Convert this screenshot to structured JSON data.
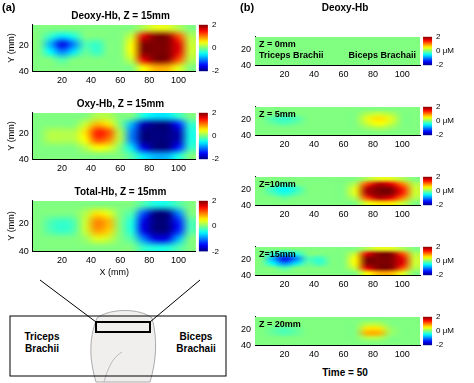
{
  "figure": {
    "panel_labels": [
      "(a)",
      "(b)"
    ],
    "title_b": "Deoxy-Hb",
    "footer_b": "Time = 50",
    "diagram_labels": [
      "Triceps Brachii",
      "Biceps Brachaii"
    ]
  },
  "chart_data": [
    {
      "type": "heatmap",
      "title": "Deoxy-Hb, Z = 15mm",
      "y_label": "Y (mm)",
      "x": [
        4,
        12,
        20,
        28,
        36,
        44,
        52,
        60,
        68,
        76,
        84,
        92,
        100,
        108
      ],
      "y": [
        7,
        13,
        19,
        25,
        31,
        37
      ],
      "cells": [
        [
          0,
          0,
          0,
          0,
          0,
          0,
          0,
          0,
          0,
          0.2,
          0.4,
          0.4,
          0.2,
          0
        ],
        [
          0,
          -0.3,
          -0.6,
          -0.4,
          0,
          0,
          0,
          0,
          0.3,
          1.6,
          2,
          2,
          1.2,
          0.2
        ],
        [
          0,
          -0.8,
          -1.6,
          -1,
          -0.2,
          -0.3,
          0,
          0,
          0.5,
          2,
          2,
          2,
          1.6,
          0.3
        ],
        [
          0,
          -0.5,
          -1,
          -0.6,
          -0.1,
          -0.3,
          0,
          0,
          0.5,
          2,
          2,
          2,
          1.6,
          0.3
        ],
        [
          0,
          0,
          -0.2,
          0,
          0,
          0,
          0,
          0,
          0.3,
          1.6,
          2,
          2,
          1.2,
          0.2
        ],
        [
          0,
          0,
          0,
          0,
          0,
          0,
          0,
          0,
          0,
          0.5,
          0.8,
          0.8,
          0.4,
          0
        ]
      ],
      "xlim": [
        0,
        112
      ],
      "ylim": [
        4,
        40
      ],
      "xticks": [
        20,
        40,
        60,
        80,
        100
      ],
      "yticks": [
        20,
        40
      ],
      "grid": false,
      "colorbar_range": [
        -2,
        2
      ],
      "colorbar_ticks": [
        -2,
        0,
        2
      ]
    },
    {
      "type": "heatmap",
      "title": "Oxy-Hb, Z = 15mm",
      "y_label": "Y (mm)",
      "x": [
        4,
        12,
        20,
        28,
        36,
        44,
        52,
        60,
        68,
        76,
        84,
        92,
        100,
        108
      ],
      "y": [
        7,
        13,
        19,
        25,
        31,
        37
      ],
      "cells": [
        [
          0,
          0,
          0,
          0,
          0,
          0.2,
          0.2,
          0,
          0,
          -0.4,
          -0.6,
          -0.6,
          -0.3,
          0
        ],
        [
          0,
          0,
          0,
          0,
          0.3,
          0.8,
          0.6,
          0,
          -0.8,
          -1.8,
          -2,
          -2,
          -1.4,
          -0.3
        ],
        [
          0,
          0.2,
          0.2,
          0.2,
          0.6,
          1.4,
          1.2,
          0.2,
          -1,
          -2,
          -2,
          -2,
          -1.8,
          -0.4
        ],
        [
          0,
          0.2,
          0.2,
          0.2,
          0.5,
          1.2,
          1,
          0.2,
          -1,
          -2,
          -2,
          -2,
          -1.8,
          -0.4
        ],
        [
          0,
          0,
          0,
          0,
          0.2,
          0.5,
          0.4,
          0,
          -0.6,
          -1.6,
          -2,
          -2,
          -1.4,
          -0.3
        ],
        [
          0,
          0,
          0,
          0,
          0,
          0,
          0,
          0,
          -0.2,
          -0.6,
          -0.8,
          -0.8,
          -0.4,
          0
        ]
      ],
      "xlim": [
        0,
        112
      ],
      "ylim": [
        4,
        40
      ],
      "xticks": [
        20,
        40,
        60,
        80,
        100
      ],
      "yticks": [
        20,
        40
      ],
      "grid": false,
      "colorbar_range": [
        -2,
        2
      ],
      "colorbar_ticks": [
        -2,
        0,
        2
      ]
    },
    {
      "type": "heatmap",
      "title": "Total-Hb, Z = 15mm",
      "x_label": "X (mm)",
      "y_label": "Y (mm)",
      "x": [
        4,
        12,
        20,
        28,
        36,
        44,
        52,
        60,
        68,
        76,
        84,
        92,
        100,
        108
      ],
      "y": [
        7,
        13,
        19,
        25,
        31,
        37
      ],
      "cells": [
        [
          0,
          0,
          0,
          0,
          0,
          0,
          0,
          0,
          0,
          -0.2,
          -0.4,
          -0.4,
          -0.2,
          0
        ],
        [
          0,
          0,
          0,
          0,
          0.2,
          0.6,
          0.4,
          0,
          -0.2,
          -1.2,
          -2,
          -2,
          -1,
          0
        ],
        [
          0,
          -0.2,
          -0.3,
          -0.2,
          0.3,
          1,
          0.8,
          0,
          -0.4,
          -1.6,
          -2,
          -2,
          -1.4,
          -0.2
        ],
        [
          0,
          -0.2,
          -0.3,
          -0.2,
          0.3,
          0.9,
          0.7,
          0,
          -0.4,
          -1.6,
          -2,
          -2,
          -1.4,
          -0.2
        ],
        [
          0,
          0,
          0,
          0,
          0.1,
          0.4,
          0.3,
          0,
          -0.2,
          -1,
          -1.6,
          -1.6,
          -0.8,
          0
        ],
        [
          0,
          0,
          0,
          0,
          0,
          0,
          0,
          0,
          0,
          -0.3,
          -0.4,
          -0.4,
          -0.2,
          0
        ]
      ],
      "xlim": [
        0,
        112
      ],
      "ylim": [
        4,
        40
      ],
      "xticks": [
        20,
        40,
        60,
        80,
        100
      ],
      "yticks": [
        20,
        40
      ],
      "grid": false,
      "colorbar_range": [
        -2,
        2
      ],
      "colorbar_ticks": [
        -2,
        0,
        2
      ]
    },
    {
      "type": "heatmap",
      "title": "Z = 0mm",
      "annotations": [
        "Triceps Brachii",
        "Biceps Brachaii"
      ],
      "x": [
        4,
        12,
        20,
        28,
        36,
        44,
        52,
        60,
        68,
        76,
        84,
        92,
        100,
        108
      ],
      "y": [
        7,
        13,
        19,
        25,
        31,
        37
      ],
      "cells": [
        [
          0,
          0,
          0,
          0,
          0,
          0,
          0,
          0,
          0,
          0,
          0,
          0,
          0,
          0
        ],
        [
          0,
          0,
          0,
          0,
          0,
          0,
          0,
          0,
          0,
          0,
          0,
          0,
          0,
          0
        ],
        [
          0,
          0,
          0,
          0,
          0,
          0,
          0,
          0,
          0,
          0,
          0,
          0,
          0,
          0
        ],
        [
          0,
          0,
          0,
          0,
          0,
          0,
          0,
          0,
          0,
          0,
          0,
          0,
          0,
          0
        ],
        [
          0,
          0,
          0,
          0,
          0,
          0,
          0,
          0,
          0,
          0,
          0,
          0,
          0,
          0
        ],
        [
          0,
          0,
          0,
          0,
          0,
          0,
          0,
          0,
          0,
          0,
          0,
          0,
          0,
          0
        ]
      ],
      "xlim": [
        0,
        112
      ],
      "ylim": [
        4,
        40
      ],
      "xticks": [
        20,
        40,
        60,
        80,
        100
      ],
      "yticks": [
        20,
        40
      ],
      "grid": false,
      "colorbar_range": [
        -2,
        2
      ],
      "colorbar_ticks": [
        -2,
        {
          "value": 0,
          "label": "0 μM"
        },
        2
      ]
    },
    {
      "type": "heatmap",
      "title": "Z = 5mm",
      "x": [
        4,
        12,
        20,
        28,
        36,
        44,
        52,
        60,
        68,
        76,
        84,
        92,
        100,
        108
      ],
      "y": [
        7,
        13,
        19,
        25,
        31,
        37
      ],
      "cells": [
        [
          0,
          0,
          0,
          0,
          0,
          0,
          0,
          0,
          0,
          0,
          0,
          0,
          0,
          0
        ],
        [
          0,
          0,
          -0.1,
          0,
          0,
          0,
          0,
          0,
          0,
          0.2,
          0.3,
          0.2,
          0,
          0
        ],
        [
          0,
          -0.2,
          -0.3,
          -0.2,
          0,
          0,
          0,
          0,
          0,
          0.4,
          0.6,
          0.4,
          0,
          0
        ],
        [
          0,
          -0.1,
          -0.2,
          -0.1,
          0,
          0,
          0,
          0,
          0,
          0.3,
          0.5,
          0.3,
          0,
          0
        ],
        [
          0,
          0,
          0,
          0,
          0,
          0,
          0,
          0,
          0,
          0.1,
          0.2,
          0.1,
          0,
          0
        ],
        [
          0,
          0,
          0,
          0,
          0,
          0,
          0,
          0,
          0,
          0,
          0,
          0,
          0,
          0
        ]
      ],
      "xlim": [
        0,
        112
      ],
      "ylim": [
        4,
        40
      ],
      "xticks": [
        20,
        40,
        60,
        80,
        100
      ],
      "yticks": [
        20,
        40
      ],
      "grid": false,
      "colorbar_range": [
        -2,
        2
      ],
      "colorbar_ticks": [
        -2,
        {
          "value": 0,
          "label": "0 μM"
        },
        2
      ]
    },
    {
      "type": "heatmap",
      "title": "Z=10mm",
      "x": [
        4,
        12,
        20,
        28,
        36,
        44,
        52,
        60,
        68,
        76,
        84,
        92,
        100,
        108
      ],
      "y": [
        7,
        13,
        19,
        25,
        31,
        37
      ],
      "cells": [
        [
          0,
          0,
          0,
          0,
          0,
          0,
          0,
          0,
          0,
          0.2,
          0.4,
          0.4,
          0.2,
          0
        ],
        [
          0,
          0,
          -0.2,
          0,
          0,
          0,
          0,
          0,
          0.2,
          1.2,
          1.8,
          1.6,
          1,
          0.2
        ],
        [
          0,
          -0.3,
          -0.5,
          -0.3,
          0,
          0,
          0,
          0,
          0.4,
          1.8,
          2,
          2,
          1.4,
          0.3
        ],
        [
          0,
          -0.2,
          -0.4,
          -0.2,
          0,
          0,
          0,
          0,
          0.4,
          1.8,
          2,
          2,
          1.4,
          0.3
        ],
        [
          0,
          0,
          -0.1,
          0,
          0,
          0,
          0,
          0,
          0.2,
          1.2,
          1.8,
          1.6,
          1,
          0.2
        ],
        [
          0,
          0,
          0,
          0,
          0,
          0,
          0,
          0,
          0,
          0.4,
          0.6,
          0.6,
          0.3,
          0
        ]
      ],
      "xlim": [
        0,
        112
      ],
      "ylim": [
        4,
        40
      ],
      "xticks": [
        20,
        40,
        60,
        80,
        100
      ],
      "yticks": [
        20,
        40
      ],
      "grid": false,
      "colorbar_range": [
        -2,
        2
      ],
      "colorbar_ticks": [
        -2,
        {
          "value": 0,
          "label": "0 μM"
        },
        2
      ]
    },
    {
      "type": "heatmap",
      "title": "Z=15mm",
      "x": [
        4,
        12,
        20,
        28,
        36,
        44,
        52,
        60,
        68,
        76,
        84,
        92,
        100,
        108
      ],
      "y": [
        7,
        13,
        19,
        25,
        31,
        37
      ],
      "cells": [
        [
          0,
          0,
          0,
          0,
          0,
          0,
          0,
          0,
          0,
          0.2,
          0.4,
          0.4,
          0.2,
          0
        ],
        [
          0,
          -0.3,
          -0.6,
          -0.4,
          0,
          0,
          0,
          0,
          0.3,
          1.6,
          2,
          2,
          1.2,
          0.2
        ],
        [
          0,
          -0.8,
          -1.6,
          -1,
          -0.2,
          -0.3,
          0,
          0,
          0.5,
          2,
          2,
          2,
          1.6,
          0.3
        ],
        [
          0,
          -0.5,
          -1,
          -0.6,
          -0.1,
          -0.3,
          0,
          0,
          0.5,
          2,
          2,
          2,
          1.6,
          0.3
        ],
        [
          0,
          0,
          -0.2,
          0,
          0,
          0,
          0,
          0,
          0.3,
          1.6,
          2,
          2,
          1.2,
          0.2
        ],
        [
          0,
          0,
          0,
          0,
          0,
          0,
          0,
          0,
          0,
          0.5,
          0.8,
          0.8,
          0.4,
          0
        ]
      ],
      "xlim": [
        0,
        112
      ],
      "ylim": [
        4,
        40
      ],
      "xticks": [
        20,
        40,
        60,
        80,
        100
      ],
      "yticks": [
        20,
        40
      ],
      "grid": false,
      "colorbar_range": [
        -2,
        2
      ],
      "colorbar_ticks": [
        -2,
        {
          "value": 0,
          "label": "0 μM"
        },
        2
      ]
    },
    {
      "type": "heatmap",
      "title": "Z = 20mm",
      "x": [
        4,
        12,
        20,
        28,
        36,
        44,
        52,
        60,
        68,
        76,
        84,
        92,
        100,
        108
      ],
      "y": [
        7,
        13,
        19,
        25,
        31,
        37
      ],
      "cells": [
        [
          0,
          0,
          0,
          0,
          0,
          0,
          0,
          0,
          0,
          0,
          0,
          0,
          0,
          0
        ],
        [
          0,
          0,
          0,
          0,
          0,
          0,
          0,
          0,
          0,
          0.2,
          0.2,
          0,
          0,
          0
        ],
        [
          0,
          -0.1,
          -0.2,
          -0.1,
          0,
          0,
          0,
          0,
          0,
          0.6,
          0.6,
          0.1,
          0,
          0
        ],
        [
          0,
          -0.1,
          -0.2,
          -0.1,
          0,
          0,
          0,
          0,
          0,
          0.8,
          0.8,
          0.1,
          0,
          0
        ],
        [
          0,
          0,
          0,
          0,
          0,
          0,
          0,
          0,
          0,
          0.2,
          0.2,
          0,
          0,
          0
        ],
        [
          0,
          0,
          0,
          0,
          0,
          0,
          0,
          0,
          0,
          0,
          0,
          0,
          0,
          0
        ]
      ],
      "xlim": [
        0,
        112
      ],
      "ylim": [
        4,
        40
      ],
      "xticks": [
        20,
        40,
        60,
        80,
        100
      ],
      "yticks": [
        20,
        40
      ],
      "grid": false,
      "colorbar_range": [
        -2,
        2
      ],
      "colorbar_ticks": [
        -2,
        {
          "value": 0,
          "label": "0 μM"
        },
        2
      ]
    }
  ]
}
